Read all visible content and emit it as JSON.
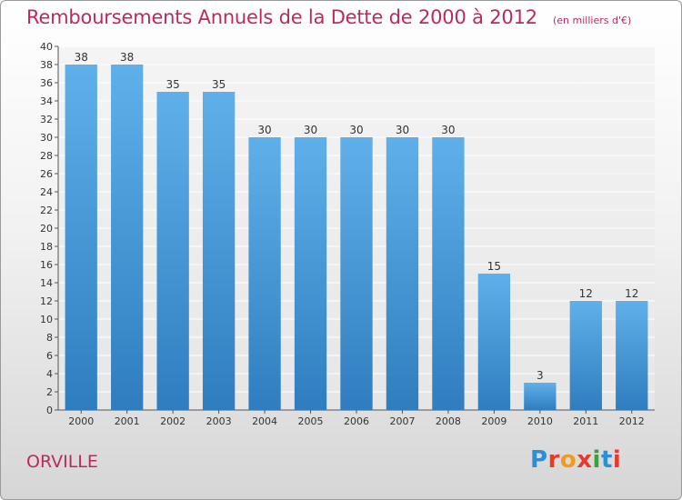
{
  "page": {
    "title": "Remboursements Annuels de la Dette de 2000 à 2012",
    "unit_note": "(en milliers d'€)",
    "commune": "ORVILLE",
    "brand": "Proxiti",
    "brand_colors": [
      "#2a8fd6",
      "#e8392b",
      "#f39a1c",
      "#e8392b",
      "#3aa23a",
      "#2a8fd6",
      "#e8392b"
    ]
  },
  "chart_data": {
    "type": "bar",
    "title": "Remboursements Annuels de la Dette de 2000 à 2012",
    "subtitle": "(en milliers d'€)",
    "categories": [
      "2000",
      "2001",
      "2002",
      "2003",
      "2004",
      "2005",
      "2006",
      "2007",
      "2008",
      "2009",
      "2010",
      "2011",
      "2012"
    ],
    "values": [
      38,
      38,
      35,
      35,
      30,
      30,
      30,
      30,
      30,
      15,
      3,
      12,
      12
    ],
    "data_labels": [
      "38",
      "38",
      "35",
      "35",
      "30",
      "30",
      "30",
      "30",
      "30",
      "15",
      "3",
      "12",
      "12"
    ],
    "ylim": [
      0,
      40
    ],
    "yticks": [
      "0",
      "2",
      "4",
      "6",
      "8",
      "10",
      "12",
      "14",
      "16",
      "18",
      "20",
      "22",
      "24",
      "26",
      "28",
      "30",
      "32",
      "34",
      "36",
      "38",
      "40"
    ],
    "grid": true,
    "bar_color_top": "#5fb0ea",
    "bar_color_bottom": "#2f7dbf",
    "title_color": "#c0285a"
  }
}
